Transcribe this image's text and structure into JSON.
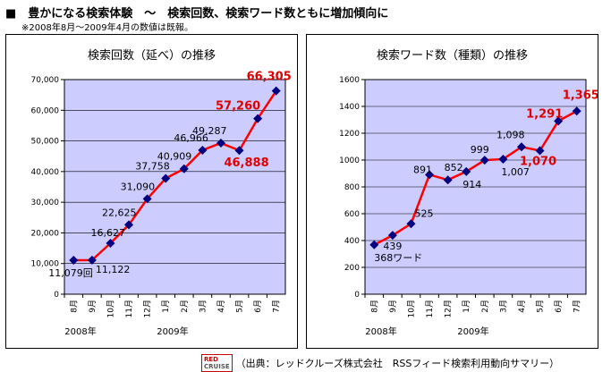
{
  "heading": "■　豊かになる検索体験　～　検索回数、検索ワード数ともに増加傾向に",
  "note": "※2008年8月～2009年4月の数値は既報。",
  "footer": {
    "logo_line1": "RED",
    "logo_line2": "CRUISE",
    "text": "（出典：レッドクルーズ株式会社　RSSフィード検索利用動向サマリー）"
  },
  "chart_data": [
    {
      "type": "line",
      "title": "検索回数（延べ）の推移",
      "categories": [
        "8月",
        "9月",
        "10月",
        "11月",
        "12月",
        "1月",
        "2月",
        "3月",
        "4月",
        "5月",
        "6月",
        "7月"
      ],
      "year_labels": [
        {
          "label": "2008年",
          "at": 0
        },
        {
          "label": "2009年",
          "at": 5
        }
      ],
      "values": [
        11079,
        11122,
        16627,
        22625,
        31090,
        37758,
        40909,
        46966,
        49287,
        46888,
        57260,
        66305
      ],
      "data_labels": [
        "11,079回",
        "11,122",
        "16,627",
        "22,625",
        "31,090",
        "37,758",
        "40,909",
        "46,966",
        "49,287",
        "46,888",
        "57,260",
        "66,305"
      ],
      "highlight": [
        9,
        10,
        11
      ],
      "ylim": [
        0,
        70000
      ],
      "ytick_step": 10000,
      "ytick_labels": [
        "0",
        "10,000",
        "20,000",
        "30,000",
        "40,000",
        "50,000",
        "60,000",
        "70,000"
      ],
      "grid": true,
      "colors": {
        "plot_bg": "#ccccff",
        "line": "#ff0000",
        "marker": "#000080",
        "highlight_text": "#e00000"
      }
    },
    {
      "type": "line",
      "title": "検索ワード数（種類）の推移",
      "categories": [
        "8月",
        "9月",
        "10月",
        "11月",
        "12月",
        "1月",
        "2月",
        "3月",
        "4月",
        "5月",
        "6月",
        "7月"
      ],
      "year_labels": [
        {
          "label": "2008年",
          "at": 0
        },
        {
          "label": "2009年",
          "at": 5
        }
      ],
      "values": [
        368,
        439,
        525,
        891,
        852,
        914,
        999,
        1007,
        1098,
        1070,
        1291,
        1365
      ],
      "data_labels": [
        "368ワード",
        "439",
        "525",
        "891",
        "852",
        "914",
        "999",
        "1,007",
        "1,098",
        "1,070",
        "1,291",
        "1,365"
      ],
      "highlight": [
        9,
        10,
        11
      ],
      "ylim": [
        0,
        1600
      ],
      "ytick_step": 200,
      "ytick_labels": [
        "0",
        "200",
        "400",
        "600",
        "800",
        "1000",
        "1200",
        "1400",
        "1600"
      ],
      "grid": true,
      "colors": {
        "plot_bg": "#ccccff",
        "line": "#ff0000",
        "marker": "#000080",
        "highlight_text": "#e00000"
      }
    }
  ]
}
